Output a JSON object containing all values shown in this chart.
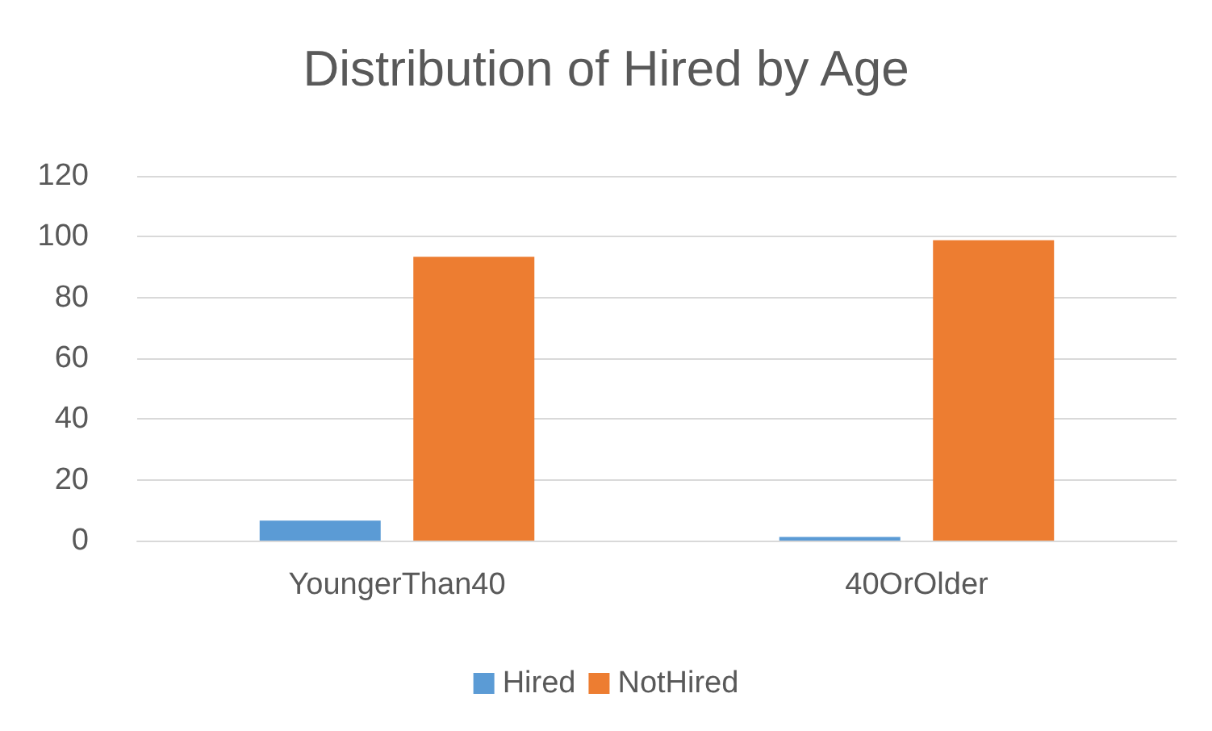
{
  "chart_data": {
    "type": "bar",
    "title": "Distribution of Hired by Age",
    "categories": [
      "YoungerThan40",
      "40OrOlder"
    ],
    "series": [
      {
        "name": "Hired",
        "color": "#5b9bd5",
        "values": [
          6.6,
          1.2
        ]
      },
      {
        "name": "NotHired",
        "color": "#ed7d31",
        "values": [
          93.4,
          98.8
        ]
      }
    ],
    "ylim": [
      0,
      120
    ],
    "yticks": [
      0,
      20,
      40,
      60,
      80,
      100,
      120
    ],
    "grid": "y",
    "legend": "bottom"
  }
}
